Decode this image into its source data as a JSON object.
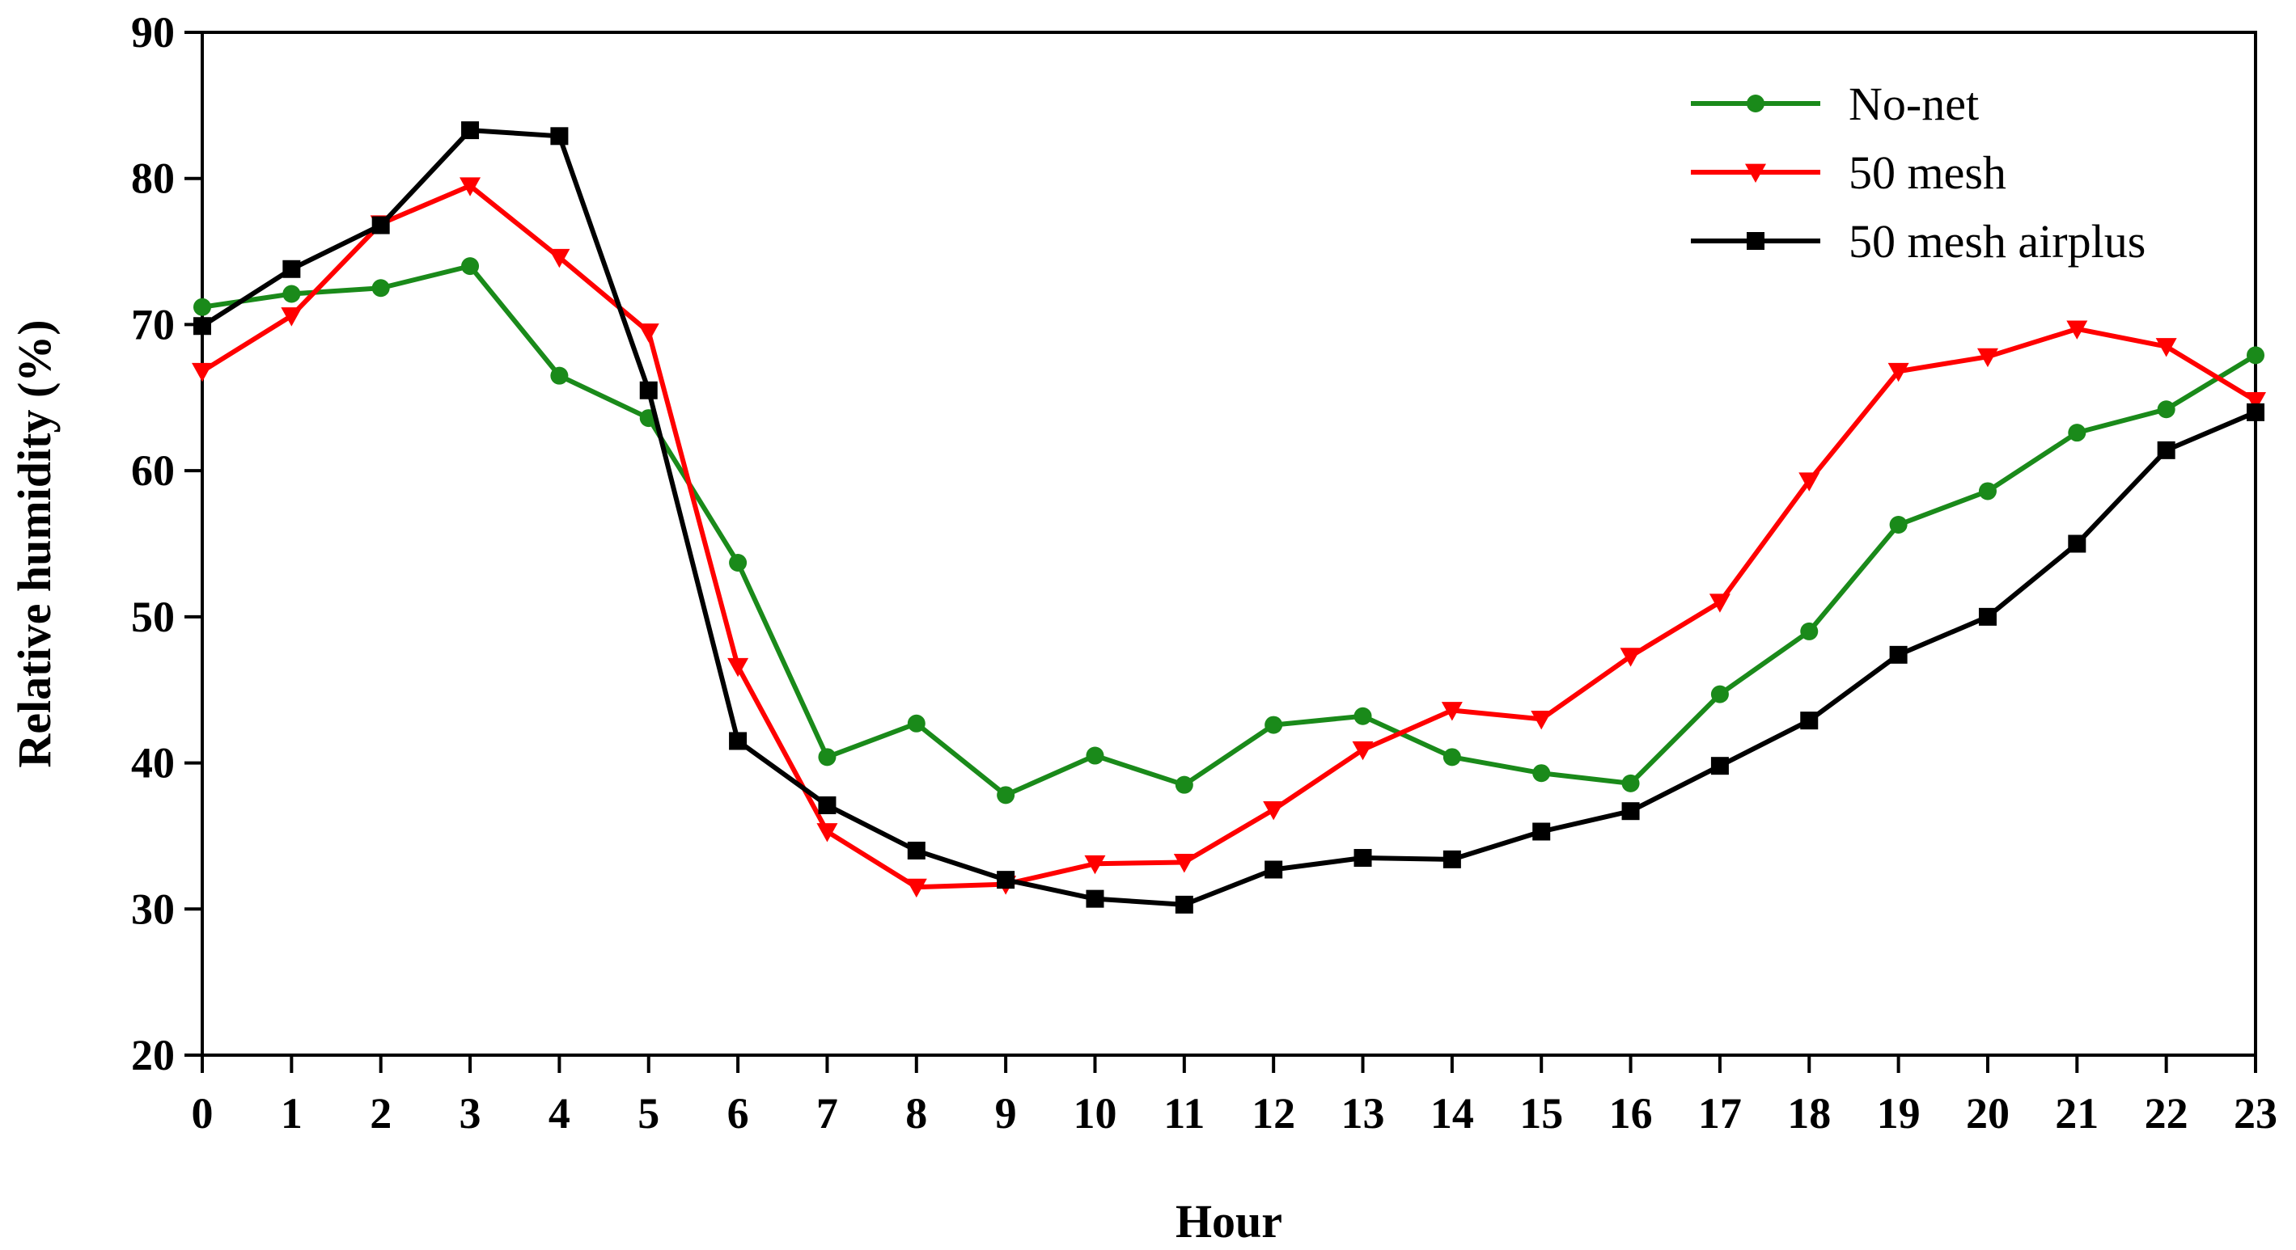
{
  "chart_data": {
    "type": "line",
    "title": "",
    "xlabel": "Hour",
    "ylabel": "Relative humidity (%)",
    "x": [
      0,
      1,
      2,
      3,
      4,
      5,
      6,
      7,
      8,
      9,
      10,
      11,
      12,
      13,
      14,
      15,
      16,
      17,
      18,
      19,
      20,
      21,
      22,
      23
    ],
    "xlim": [
      0,
      23
    ],
    "ylim": [
      20,
      90
    ],
    "yticks": [
      20,
      30,
      40,
      50,
      60,
      70,
      80,
      90
    ],
    "grid": false,
    "legend_position": "top-right",
    "series": [
      {
        "name": "No-net",
        "color": "#1a8a1a",
        "marker": "circle",
        "values": [
          71.2,
          72.1,
          72.5,
          74.0,
          66.5,
          63.6,
          53.7,
          40.4,
          42.7,
          37.8,
          40.5,
          38.5,
          42.6,
          43.2,
          40.4,
          39.3,
          38.6,
          44.7,
          49.0,
          56.3,
          58.6,
          62.6,
          64.2,
          67.9
        ]
      },
      {
        "name": "50 mesh",
        "color": "#ff0000",
        "marker": "triangle-down",
        "values": [
          66.8,
          70.6,
          76.9,
          79.5,
          74.6,
          69.5,
          46.6,
          35.3,
          31.5,
          31.7,
          33.1,
          33.2,
          36.8,
          40.9,
          43.6,
          43.0,
          47.3,
          51.0,
          59.3,
          66.8,
          67.8,
          69.7,
          68.5,
          64.8
        ]
      },
      {
        "name": "50 mesh airplus",
        "color": "#000000",
        "marker": "square",
        "values": [
          69.9,
          73.8,
          76.8,
          83.3,
          82.9,
          65.5,
          41.5,
          37.1,
          34.0,
          32.0,
          30.7,
          30.3,
          32.7,
          33.5,
          33.4,
          35.3,
          36.7,
          39.8,
          42.9,
          47.4,
          50.0,
          55.0,
          61.4,
          64.0
        ]
      }
    ]
  }
}
